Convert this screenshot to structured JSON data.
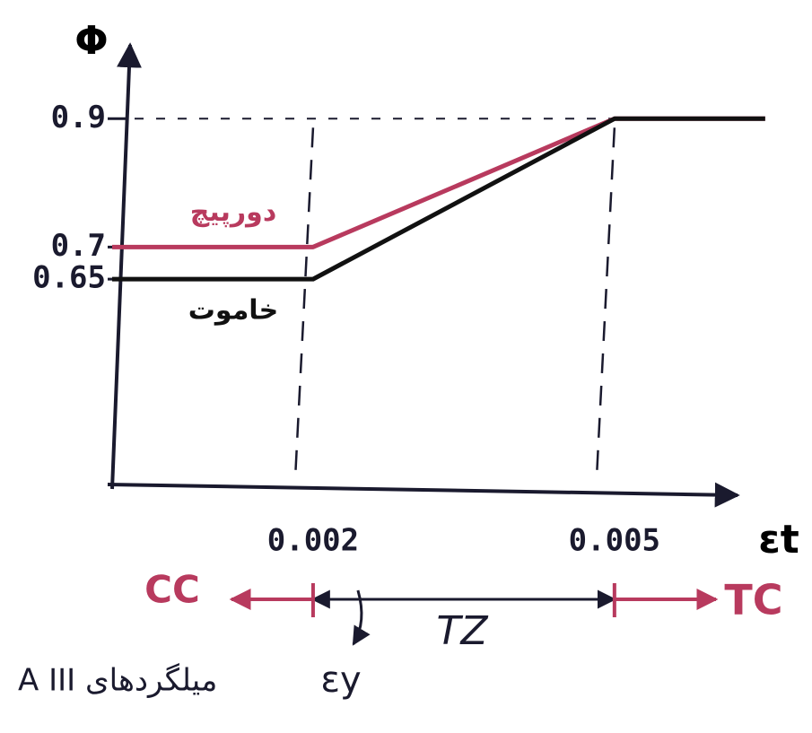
{
  "chart_data": {
    "type": "line",
    "y_label": "Φ",
    "x_label": "εt",
    "xlim": [
      0,
      0.0066
    ],
    "xticks": [
      0.002,
      0.005
    ],
    "ylim": [
      0.33,
      1.05
    ],
    "yticks": [
      0.9,
      0.7,
      0.65
    ],
    "grid": false,
    "series": [
      {
        "name": "دورپیچ",
        "color": "#b83a5e",
        "x": [
          0,
          0.002,
          0.005,
          0.0065
        ],
        "values": [
          0.7,
          0.7,
          0.9,
          0.9
        ]
      },
      {
        "name": "خاموت",
        "color": "#111111",
        "x": [
          0,
          0.002,
          0.005,
          0.0065
        ],
        "values": [
          0.65,
          0.65,
          0.9,
          0.9
        ]
      }
    ],
    "annotations": {
      "compression": "CC",
      "transition": "TZ",
      "tension": "TC",
      "yield": "εy",
      "steel": "A III میلگردهای",
      "zone_color": "#b83a5e"
    }
  }
}
